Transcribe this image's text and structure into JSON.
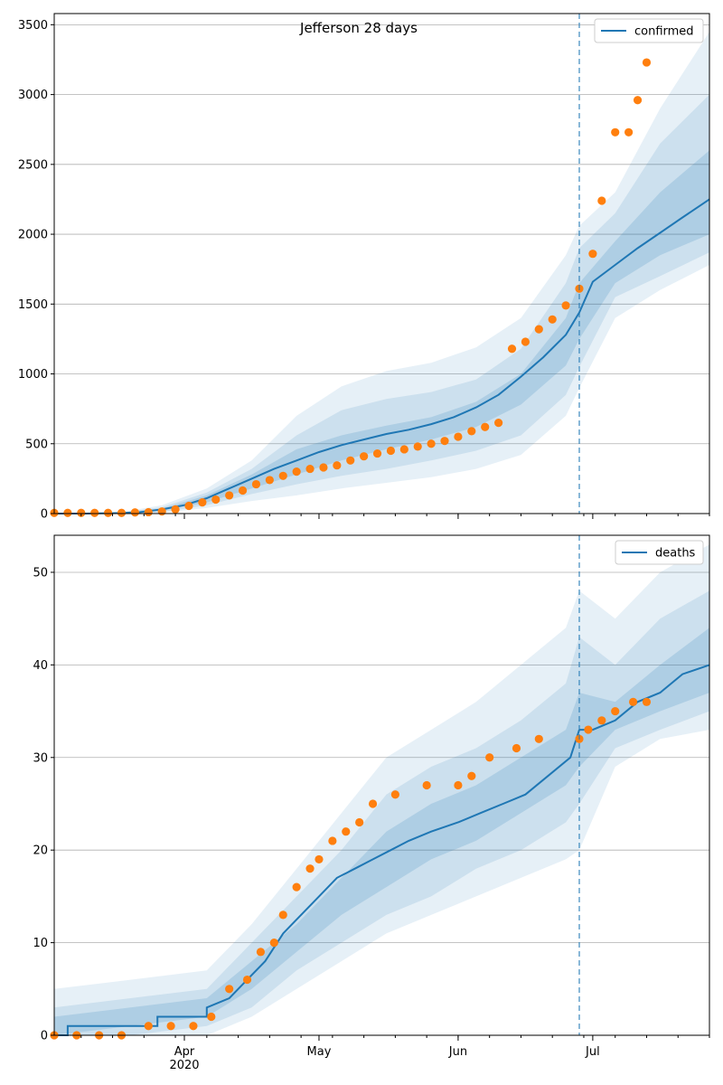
{
  "figure": {
    "title": "Jefferson 28 days",
    "x_year_label": "2020",
    "x_month_labels": [
      "Apr",
      "May",
      "Jun",
      "Jul"
    ]
  },
  "chart_data": [
    {
      "type": "line",
      "name": "confirmed-panel",
      "legend": [
        "confirmed"
      ],
      "legend_position": "top-right",
      "grid": "y-major",
      "xlim": [
        "2020-03-03",
        "2020-07-27"
      ],
      "ylim": [
        0,
        3580
      ],
      "yticks": [
        0,
        500,
        1000,
        1500,
        2000,
        2500,
        3000,
        3500
      ],
      "forecast_start": "2020-06-28",
      "colors": {
        "line": "#1f77b4",
        "band": "#1f77b4",
        "points": "#ff7f0e",
        "grid": "#b0b0b0"
      },
      "model_line": {
        "dates": [
          "2020-03-03",
          "2020-03-10",
          "2020-03-17",
          "2020-03-22",
          "2020-03-27",
          "2020-04-01",
          "2020-04-06",
          "2020-04-11",
          "2020-04-16",
          "2020-04-21",
          "2020-04-26",
          "2020-05-01",
          "2020-05-06",
          "2020-05-11",
          "2020-05-16",
          "2020-05-21",
          "2020-05-26",
          "2020-05-31",
          "2020-06-05",
          "2020-06-10",
          "2020-06-15",
          "2020-06-20",
          "2020-06-25",
          "2020-06-28",
          "2020-07-01",
          "2020-07-06",
          "2020-07-11",
          "2020-07-16",
          "2020-07-21",
          "2020-07-27"
        ],
        "values": [
          0,
          0,
          3,
          10,
          30,
          60,
          110,
          180,
          250,
          320,
          380,
          440,
          490,
          530,
          570,
          600,
          640,
          690,
          760,
          850,
          980,
          1120,
          1280,
          1440,
          1660,
          1780,
          1900,
          2010,
          2120,
          2250
        ]
      },
      "bands": [
        {
          "level": "outer",
          "dates": [
            "2020-03-03",
            "2020-03-17",
            "2020-03-27",
            "2020-04-06",
            "2020-04-16",
            "2020-04-26",
            "2020-05-06",
            "2020-05-16",
            "2020-05-26",
            "2020-06-05",
            "2020-06-15",
            "2020-06-25",
            "2020-06-28",
            "2020-07-06",
            "2020-07-16",
            "2020-07-27"
          ],
          "low": [
            0,
            0,
            5,
            40,
            90,
            130,
            180,
            220,
            260,
            320,
            420,
            700,
            900,
            1400,
            1600,
            1780
          ],
          "high": [
            0,
            5,
            60,
            180,
            380,
            700,
            910,
            1020,
            1080,
            1190,
            1400,
            1850,
            2060,
            2300,
            2900,
            3450
          ]
        },
        {
          "level": "middle",
          "dates": [
            "2020-03-03",
            "2020-03-17",
            "2020-03-27",
            "2020-04-06",
            "2020-04-16",
            "2020-04-26",
            "2020-05-06",
            "2020-05-16",
            "2020-05-26",
            "2020-06-05",
            "2020-06-15",
            "2020-06-25",
            "2020-06-28",
            "2020-07-06",
            "2020-07-16",
            "2020-07-27"
          ],
          "low": [
            0,
            0,
            10,
            60,
            140,
            210,
            270,
            320,
            380,
            450,
            560,
            850,
            1050,
            1550,
            1700,
            1870
          ],
          "high": [
            0,
            3,
            45,
            150,
            320,
            560,
            740,
            820,
            870,
            960,
            1180,
            1650,
            1900,
            2150,
            2650,
            3000
          ]
        },
        {
          "level": "inner",
          "dates": [
            "2020-03-03",
            "2020-03-17",
            "2020-03-27",
            "2020-04-06",
            "2020-04-16",
            "2020-04-26",
            "2020-05-06",
            "2020-05-16",
            "2020-05-26",
            "2020-06-05",
            "2020-06-15",
            "2020-06-25",
            "2020-06-28",
            "2020-07-06",
            "2020-07-16",
            "2020-07-27"
          ],
          "low": [
            0,
            1,
            20,
            80,
            180,
            280,
            380,
            460,
            530,
            620,
            780,
            1060,
            1250,
            1650,
            1850,
            2000
          ],
          "high": [
            0,
            3,
            35,
            130,
            280,
            460,
            560,
            630,
            690,
            800,
            1000,
            1400,
            1650,
            1950,
            2300,
            2600
          ]
        }
      ],
      "observed": {
        "name": "observed",
        "dates": [
          "2020-03-03",
          "2020-03-06",
          "2020-03-09",
          "2020-03-12",
          "2020-03-15",
          "2020-03-18",
          "2020-03-21",
          "2020-03-24",
          "2020-03-27",
          "2020-03-30",
          "2020-04-02",
          "2020-04-05",
          "2020-04-08",
          "2020-04-11",
          "2020-04-14",
          "2020-04-17",
          "2020-04-20",
          "2020-04-23",
          "2020-04-26",
          "2020-04-29",
          "2020-05-02",
          "2020-05-05",
          "2020-05-08",
          "2020-05-11",
          "2020-05-14",
          "2020-05-17",
          "2020-05-20",
          "2020-05-23",
          "2020-05-26",
          "2020-05-29",
          "2020-06-01",
          "2020-06-04",
          "2020-06-07",
          "2020-06-10",
          "2020-06-13",
          "2020-06-16",
          "2020-06-19",
          "2020-06-22",
          "2020-06-25",
          "2020-06-28",
          "2020-07-01",
          "2020-07-03",
          "2020-07-06",
          "2020-07-09",
          "2020-07-11",
          "2020-07-13"
        ],
        "values": [
          5,
          5,
          5,
          5,
          5,
          5,
          8,
          10,
          15,
          30,
          55,
          80,
          100,
          130,
          165,
          210,
          240,
          270,
          300,
          320,
          330,
          345,
          380,
          410,
          430,
          450,
          460,
          480,
          500,
          520,
          550,
          590,
          620,
          650,
          1180,
          1230,
          1320,
          1390,
          1490,
          1610,
          1860,
          2240,
          2730,
          2730,
          2960,
          3230
        ]
      }
    },
    {
      "type": "line",
      "name": "deaths-panel",
      "legend": [
        "deaths"
      ],
      "legend_position": "top-right",
      "grid": "y-major",
      "xlim": [
        "2020-03-03",
        "2020-07-27"
      ],
      "ylim": [
        0,
        54
      ],
      "yticks": [
        0,
        10,
        20,
        30,
        40,
        50
      ],
      "forecast_start": "2020-06-28",
      "colors": {
        "line": "#1f77b4",
        "band": "#1f77b4",
        "points": "#ff7f0e",
        "grid": "#b0b0b0"
      },
      "model_line": {
        "dates": [
          "2020-03-03",
          "2020-03-06",
          "2020-03-06",
          "2020-03-26",
          "2020-03-26",
          "2020-04-06",
          "2020-04-06",
          "2020-04-11",
          "2020-04-15",
          "2020-04-19",
          "2020-04-23",
          "2020-04-27",
          "2020-05-01",
          "2020-05-05",
          "2020-05-09",
          "2020-05-13",
          "2020-05-17",
          "2020-05-21",
          "2020-05-26",
          "2020-06-01",
          "2020-06-06",
          "2020-06-11",
          "2020-06-16",
          "2020-06-21",
          "2020-06-26",
          "2020-06-28",
          "2020-07-01",
          "2020-07-06",
          "2020-07-11",
          "2020-07-16",
          "2020-07-21",
          "2020-07-27"
        ],
        "values": [
          0,
          0,
          1,
          1,
          2,
          2,
          3,
          4,
          6,
          8,
          11,
          13,
          15,
          17,
          18,
          19,
          20,
          21,
          22,
          23,
          24,
          25,
          26,
          28,
          30,
          33,
          33,
          34,
          36,
          37,
          39,
          40
        ]
      },
      "bands": [
        {
          "level": "outer",
          "dates": [
            "2020-03-03",
            "2020-03-20",
            "2020-04-06",
            "2020-04-16",
            "2020-04-26",
            "2020-05-06",
            "2020-05-16",
            "2020-05-26",
            "2020-06-05",
            "2020-06-15",
            "2020-06-25",
            "2020-06-28",
            "2020-07-06",
            "2020-07-16",
            "2020-07-27"
          ],
          "low": [
            0,
            0,
            0,
            2,
            5,
            8,
            11,
            13,
            15,
            17,
            19,
            20,
            29,
            32,
            33
          ],
          "high": [
            5,
            6,
            7,
            12,
            18,
            24,
            30,
            33,
            36,
            40,
            44,
            48,
            45,
            50,
            53
          ]
        },
        {
          "level": "middle",
          "dates": [
            "2020-03-03",
            "2020-03-20",
            "2020-04-06",
            "2020-04-16",
            "2020-04-26",
            "2020-05-06",
            "2020-05-16",
            "2020-05-26",
            "2020-06-05",
            "2020-06-15",
            "2020-06-25",
            "2020-06-28",
            "2020-07-06",
            "2020-07-16",
            "2020-07-27"
          ],
          "low": [
            0,
            0,
            1,
            3,
            7,
            10,
            13,
            15,
            18,
            20,
            23,
            25,
            31,
            33,
            35
          ],
          "high": [
            3,
            4,
            5,
            10,
            15,
            20,
            26,
            29,
            31,
            34,
            38,
            43,
            40,
            45,
            48
          ]
        },
        {
          "level": "inner",
          "dates": [
            "2020-03-03",
            "2020-03-20",
            "2020-04-06",
            "2020-04-16",
            "2020-04-26",
            "2020-05-06",
            "2020-05-16",
            "2020-05-26",
            "2020-06-05",
            "2020-06-15",
            "2020-06-25",
            "2020-06-28",
            "2020-07-06",
            "2020-07-16",
            "2020-07-27"
          ],
          "low": [
            0,
            1,
            2,
            5,
            9,
            13,
            16,
            19,
            21,
            24,
            27,
            29,
            33,
            35,
            37
          ],
          "high": [
            2,
            3,
            4,
            8,
            12,
            17,
            22,
            25,
            27,
            30,
            33,
            37,
            36,
            40,
            44
          ]
        }
      ],
      "observed": {
        "name": "observed",
        "dates": [
          "2020-03-03",
          "2020-03-08",
          "2020-03-13",
          "2020-03-18",
          "2020-03-24",
          "2020-03-29",
          "2020-04-03",
          "2020-04-07",
          "2020-04-11",
          "2020-04-15",
          "2020-04-18",
          "2020-04-21",
          "2020-04-23",
          "2020-04-26",
          "2020-04-29",
          "2020-05-01",
          "2020-05-04",
          "2020-05-07",
          "2020-05-10",
          "2020-05-13",
          "2020-05-18",
          "2020-05-25",
          "2020-06-01",
          "2020-06-04",
          "2020-06-08",
          "2020-06-14",
          "2020-06-19",
          "2020-06-28",
          "2020-06-30",
          "2020-07-03",
          "2020-07-06",
          "2020-07-10",
          "2020-07-13"
        ],
        "values": [
          0,
          0,
          0,
          0,
          1,
          1,
          1,
          2,
          5,
          6,
          9,
          10,
          13,
          16,
          18,
          19,
          21,
          22,
          23,
          25,
          26,
          27,
          27,
          28,
          30,
          31,
          32,
          32,
          33,
          34,
          35,
          36,
          36
        ]
      }
    }
  ]
}
